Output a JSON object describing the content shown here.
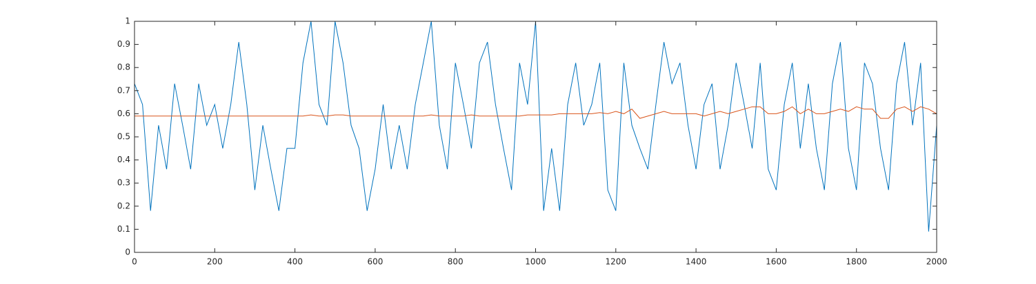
{
  "chart_data": {
    "type": "line",
    "x": [
      0,
      20,
      40,
      60,
      80,
      100,
      120,
      140,
      160,
      180,
      200,
      220,
      240,
      260,
      280,
      300,
      320,
      340,
      360,
      380,
      400,
      420,
      440,
      460,
      480,
      500,
      520,
      540,
      560,
      580,
      600,
      620,
      640,
      660,
      680,
      700,
      720,
      740,
      760,
      780,
      800,
      820,
      840,
      860,
      880,
      900,
      920,
      940,
      960,
      980,
      1000,
      1020,
      1040,
      1060,
      1080,
      1100,
      1120,
      1140,
      1160,
      1180,
      1200,
      1220,
      1240,
      1260,
      1280,
      1300,
      1320,
      1340,
      1360,
      1380,
      1400,
      1420,
      1440,
      1460,
      1480,
      1500,
      1520,
      1540,
      1560,
      1580,
      1600,
      1620,
      1640,
      1660,
      1680,
      1700,
      1720,
      1740,
      1760,
      1780,
      1800,
      1820,
      1840,
      1860,
      1880,
      1900,
      1920,
      1940,
      1960,
      1980,
      2000
    ],
    "series": [
      {
        "color": "#0072bd",
        "values": [
          0.73,
          0.64,
          0.18,
          0.55,
          0.36,
          0.73,
          0.55,
          0.36,
          0.73,
          0.55,
          0.64,
          0.45,
          0.64,
          0.91,
          0.64,
          0.27,
          0.55,
          0.36,
          0.18,
          0.45,
          0.45,
          0.82,
          1,
          0.64,
          0.55,
          1,
          0.82,
          0.55,
          0.45,
          0.18,
          0.36,
          0.64,
          0.36,
          0.55,
          0.36,
          0.64,
          0.82,
          1,
          0.55,
          0.36,
          0.82,
          0.64,
          0.45,
          0.82,
          0.91,
          0.64,
          0.45,
          0.27,
          0.82,
          0.64,
          1,
          0.18,
          0.45,
          0.18,
          0.64,
          0.82,
          0.55,
          0.64,
          0.82,
          0.27,
          0.18,
          0.82,
          0.55,
          0.45,
          0.36,
          0.64,
          0.91,
          0.73,
          0.82,
          0.55,
          0.36,
          0.64,
          0.73,
          0.36,
          0.55,
          0.82,
          0.64,
          0.45,
          0.82,
          0.36,
          0.27,
          0.64,
          0.82,
          0.45,
          0.73,
          0.45,
          0.27,
          0.73,
          0.91,
          0.45,
          0.27,
          0.82,
          0.73,
          0.45,
          0.27,
          0.73,
          0.91,
          0.55,
          0.82,
          0.09,
          0.55
        ]
      },
      {
        "color": "#d95319",
        "values": [
          0.59,
          0.59,
          0.59,
          0.59,
          0.59,
          0.59,
          0.59,
          0.59,
          0.59,
          0.59,
          0.59,
          0.59,
          0.59,
          0.59,
          0.59,
          0.59,
          0.59,
          0.59,
          0.59,
          0.59,
          0.59,
          0.59,
          0.595,
          0.59,
          0.59,
          0.595,
          0.595,
          0.59,
          0.59,
          0.59,
          0.59,
          0.59,
          0.59,
          0.59,
          0.59,
          0.59,
          0.59,
          0.595,
          0.59,
          0.59,
          0.59,
          0.59,
          0.595,
          0.59,
          0.59,
          0.59,
          0.59,
          0.59,
          0.59,
          0.595,
          0.595,
          0.595,
          0.595,
          0.6,
          0.6,
          0.6,
          0.6,
          0.6,
          0.605,
          0.6,
          0.61,
          0.6,
          0.62,
          0.58,
          0.59,
          0.6,
          0.61,
          0.6,
          0.6,
          0.6,
          0.6,
          0.59,
          0.6,
          0.61,
          0.6,
          0.61,
          0.62,
          0.63,
          0.63,
          0.6,
          0.6,
          0.61,
          0.63,
          0.6,
          0.62,
          0.6,
          0.6,
          0.61,
          0.62,
          0.61,
          0.63,
          0.62,
          0.62,
          0.58,
          0.58,
          0.62,
          0.63,
          0.61,
          0.63,
          0.62,
          0.6
        ]
      }
    ],
    "xlim": [
      0,
      2000
    ],
    "xticks": [
      0,
      200,
      400,
      600,
      800,
      1000,
      1200,
      1400,
      1600,
      1800,
      2000
    ],
    "ylim": [
      0,
      1
    ],
    "yticks": [
      0,
      0.1,
      0.2,
      0.3,
      0.4,
      0.5,
      0.6,
      0.7,
      0.8,
      0.9,
      1
    ]
  }
}
